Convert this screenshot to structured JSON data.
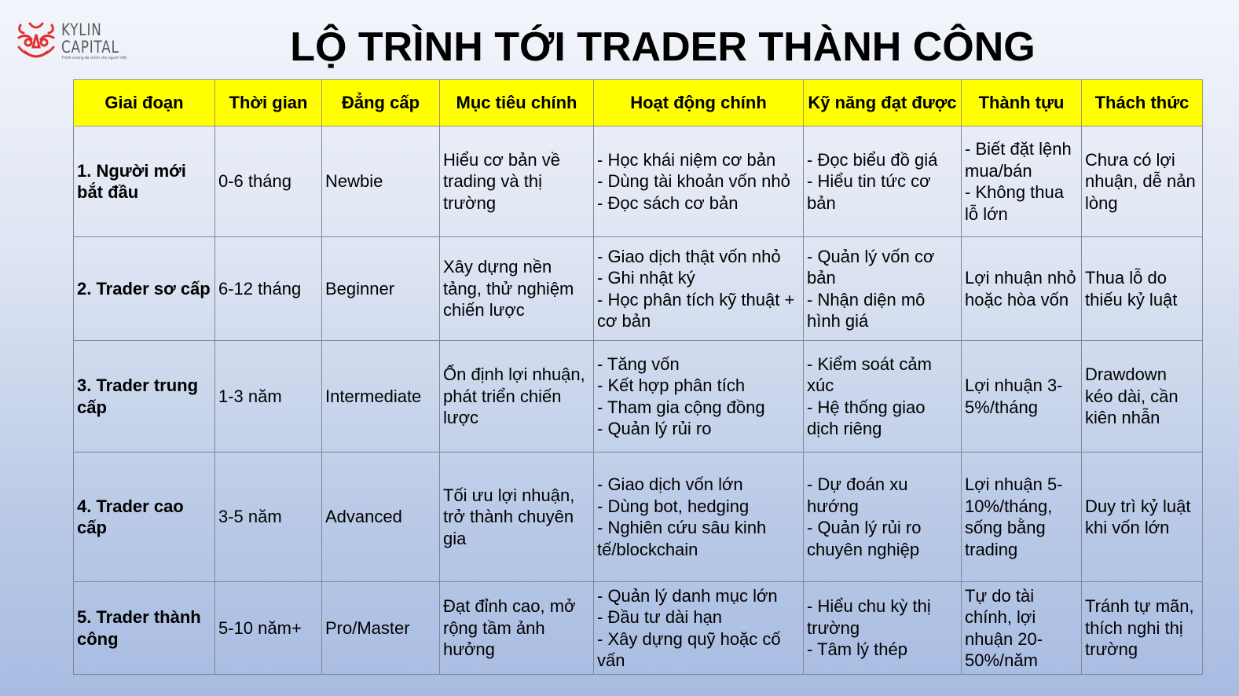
{
  "logo": {
    "name_line1": "KYLIN",
    "name_line2": "CAPITAL",
    "tagline": "Thịnh vượng tài chính cho người Việt",
    "brand_color": "#e03131"
  },
  "title": "LỘ TRÌNH TỚI TRADER THÀNH CÔNG",
  "table": {
    "headers": [
      "Giai đoạn",
      "Thời gian",
      "Đẳng cấp",
      "Mục tiêu chính",
      "Hoạt động chính",
      "Kỹ năng đạt được",
      "Thành tựu",
      "Thách thức"
    ],
    "header_color": "#ffff00",
    "rows": [
      [
        "1. Người mới bắt đầu",
        "0-6 tháng",
        "Newbie",
        "Hiểu cơ bản về trading và thị trường",
        "- Học khái niệm cơ bản\n- Dùng tài khoản vốn nhỏ\n- Đọc sách cơ bản",
        "- Đọc biểu đồ giá\n- Hiểu tin tức cơ bản",
        "- Biết đặt lệnh mua/bán\n- Không thua lỗ lớn",
        "Chưa có lợi nhuận, dễ nản lòng"
      ],
      [
        "2. Trader sơ cấp",
        "6-12 tháng",
        "Beginner",
        "Xây dựng nền tảng, thử nghiệm chiến lược",
        "- Giao dịch thật vốn nhỏ\n- Ghi nhật ký\n- Học phân tích kỹ thuật + cơ bản",
        "- Quản lý vốn cơ bản\n- Nhận diện mô hình giá",
        "Lợi nhuận nhỏ hoặc hòa vốn",
        "Thua lỗ do thiếu kỷ luật"
      ],
      [
        "3. Trader trung cấp",
        "1-3 năm",
        "Intermediate",
        "Ổn định lợi nhuận, phát triển chiến lược",
        "- Tăng vốn\n- Kết hợp phân tích\n- Tham gia cộng đồng\n- Quản lý rủi ro",
        "- Kiểm soát cảm xúc\n- Hệ thống giao dịch riêng",
        "Lợi nhuận 3-5%/tháng",
        "Drawdown kéo dài, cần kiên nhẫn"
      ],
      [
        "4. Trader cao cấp",
        "3-5 năm",
        "Advanced",
        "Tối ưu lợi nhuận, trở thành chuyên gia",
        "- Giao dịch vốn lớn\n- Dùng bot, hedging\n- Nghiên cứu sâu kinh tế/blockchain",
        "- Dự đoán xu hướng\n- Quản lý rủi ro chuyên nghiệp",
        "Lợi nhuận 5-10%/tháng, sống bằng trading",
        "Duy trì kỷ luật khi vốn lớn"
      ],
      [
        "5. Trader thành công",
        "5-10 năm+",
        "Pro/Master",
        "Đạt đỉnh cao, mở rộng tầm ảnh hưởng",
        "- Quản lý danh mục lớn\n- Đầu tư dài hạn\n- Xây dựng quỹ hoặc cố vấn",
        "- Hiểu chu kỳ thị trường\n- Tâm lý thép",
        "Tự do tài chính, lợi nhuận 20-50%/năm",
        "Tránh tự mãn, thích nghi thị trường"
      ]
    ]
  }
}
